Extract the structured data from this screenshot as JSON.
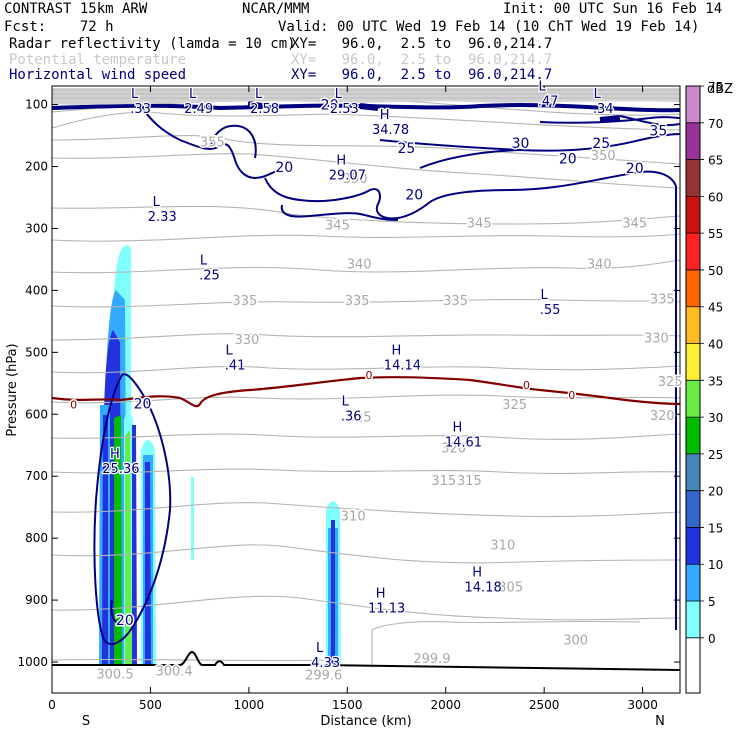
{
  "header": {
    "model": "CONTRAST 15km ARW",
    "center": "NCAR/MMM",
    "init": "Init: 00 UTC Sun 16 Feb 14",
    "fcst": "Fcst:    72 h",
    "valid": "Valid: 00 UTC Wed 19 Feb 14 (10 ChT Wed 19 Feb 14)",
    "field1": {
      "name": "Radar reflectivity (lamda = 10 cm)",
      "xy": "XY=   96.0,  2.5 to  96.0,214.7",
      "color": "#000000"
    },
    "field2": {
      "name": "Potential temperature",
      "xy": "XY=   96.0,  2.5 to  96.0,214.7",
      "color": "#c8c8c8"
    },
    "field3": {
      "name": "Horizontal wind speed",
      "xy": "XY=   96.0,  2.5 to  96.0,214.7",
      "color": "#000080"
    }
  },
  "chart_data": {
    "type": "heatmap",
    "description": "vertical cross-section",
    "xlabel": "Distance (km)",
    "ylabel": "Pressure (hPa)",
    "x_range": [
      0,
      3190
    ],
    "y_range": [
      1050,
      70
    ],
    "x_ticks": [
      0,
      500,
      1000,
      1500,
      2000,
      2500,
      3000
    ],
    "y_ticks": [
      100,
      200,
      300,
      400,
      500,
      600,
      700,
      800,
      900,
      1000
    ],
    "x_end_labels": {
      "left": "S",
      "right": "N"
    },
    "colorbar": {
      "unit": "dBZ",
      "levels": [
        0,
        5,
        10,
        15,
        20,
        25,
        30,
        35,
        40,
        45,
        50,
        55,
        60,
        65,
        70,
        75
      ],
      "colors": [
        "#ffffff",
        "#80ffff",
        "#33aaff",
        "#2233dd",
        "#3366cc",
        "#4488bb",
        "#00bb00",
        "#66ee44",
        "#ffee33",
        "#ffbb22",
        "#ff6600",
        "#ff2222",
        "#cc1111",
        "#993333",
        "#993399",
        "#cc88cc"
      ]
    },
    "theta_labels": [
      {
        "v": "355",
        "x": 815,
        "p": 161
      },
      {
        "v": "350",
        "x": 2800,
        "p": 183
      },
      {
        "v": "350",
        "x": 1540,
        "p": 220
      },
      {
        "v": "345",
        "x": 1450,
        "p": 295
      },
      {
        "v": "345",
        "x": 2170,
        "p": 292
      },
      {
        "v": "345",
        "x": 2960,
        "p": 292
      },
      {
        "v": "340",
        "x": 1560,
        "p": 358
      },
      {
        "v": "340",
        "x": 2780,
        "p": 358
      },
      {
        "v": "335",
        "x": 980,
        "p": 417
      },
      {
        "v": "335",
        "x": 1550,
        "p": 417
      },
      {
        "v": "335",
        "x": 2050,
        "p": 417
      },
      {
        "v": "335",
        "x": 3100,
        "p": 415
      },
      {
        "v": "330",
        "x": 990,
        "p": 480
      },
      {
        "v": "330",
        "x": 3070,
        "p": 478
      },
      {
        "v": "325",
        "x": 1560,
        "p": 605
      },
      {
        "v": "325",
        "x": 2350,
        "p": 585
      },
      {
        "v": "325",
        "x": 3140,
        "p": 548
      },
      {
        "v": "320",
        "x": 2040,
        "p": 655
      },
      {
        "v": "320",
        "x": 3100,
        "p": 603
      },
      {
        "v": "315",
        "x": 1990,
        "p": 708
      },
      {
        "v": "315",
        "x": 2120,
        "p": 708
      },
      {
        "v": "310",
        "x": 1530,
        "p": 765
      },
      {
        "v": "310",
        "x": 2290,
        "p": 812
      },
      {
        "v": "305",
        "x": 2330,
        "p": 880
      },
      {
        "v": "300",
        "x": 2660,
        "p": 965
      },
      {
        "v": "299.9",
        "x": 1930,
        "p": 995
      },
      {
        "v": "300.5",
        "x": 320,
        "p": 1020
      },
      {
        "v": "300.4",
        "x": 620,
        "p": 1015
      },
      {
        "v": "299.6",
        "x": 1380,
        "p": 1022
      }
    ],
    "wind_labels": [
      {
        "v": "20",
        "x": 1410,
        "p": 100
      },
      {
        "v": "25",
        "x": 1800,
        "p": 170
      },
      {
        "v": "30",
        "x": 2380,
        "p": 162
      },
      {
        "v": "25",
        "x": 2790,
        "p": 162
      },
      {
        "v": "20",
        "x": 2620,
        "p": 187
      },
      {
        "v": "20",
        "x": 2960,
        "p": 202
      },
      {
        "v": "35",
        "x": 3080,
        "p": 142
      },
      {
        "v": "20",
        "x": 1180,
        "p": 201
      },
      {
        "v": "20",
        "x": 1840,
        "p": 245
      },
      {
        "v": "20",
        "x": 460,
        "p": 583
      },
      {
        "v": "20",
        "x": 370,
        "p": 932
      },
      {
        "v": "0",
        "x": 110,
        "p": 583
      },
      {
        "v": "0",
        "x": 1610,
        "p": 535
      },
      {
        "v": "0",
        "x": 2410,
        "p": 551
      },
      {
        "v": "0",
        "x": 2640,
        "p": 567
      }
    ],
    "extrema": [
      {
        "t": "L",
        "v": ".33",
        "x": 450,
        "p": 96
      },
      {
        "t": "L",
        "v": "2.49",
        "x": 745,
        "p": 96
      },
      {
        "t": "L",
        "v": "2.58",
        "x": 1080,
        "p": 96
      },
      {
        "t": "L",
        "v": "2.53",
        "x": 1485,
        "p": 96
      },
      {
        "t": "L",
        "v": ".47",
        "x": 2520,
        "p": 84
      },
      {
        "t": "L",
        "v": ".34",
        "x": 2800,
        "p": 96
      },
      {
        "t": "H",
        "v": "34.78",
        "x": 1720,
        "p": 130
      },
      {
        "t": "H",
        "v": "29.07",
        "x": 1500,
        "p": 203
      },
      {
        "t": "L",
        "v": "2.33",
        "x": 560,
        "p": 270
      },
      {
        "t": "L",
        "v": ".25",
        "x": 800,
        "p": 365
      },
      {
        "t": "L",
        "v": ".55",
        "x": 2530,
        "p": 420
      },
      {
        "t": "L",
        "v": ".41",
        "x": 930,
        "p": 510
      },
      {
        "t": "H",
        "v": "14.14",
        "x": 1780,
        "p": 510
      },
      {
        "t": "L",
        "v": ".36",
        "x": 1520,
        "p": 592
      },
      {
        "t": "H",
        "v": "14.61",
        "x": 2090,
        "p": 634
      },
      {
        "t": "H",
        "v": "25.36",
        "x": 350,
        "p": 677
      },
      {
        "t": "H",
        "v": "14.18",
        "x": 2190,
        "p": 868
      },
      {
        "t": "H",
        "v": "11.13",
        "x": 1700,
        "p": 902
      },
      {
        "t": "L",
        "v": "4.33",
        "x": 1390,
        "p": 990
      }
    ]
  }
}
